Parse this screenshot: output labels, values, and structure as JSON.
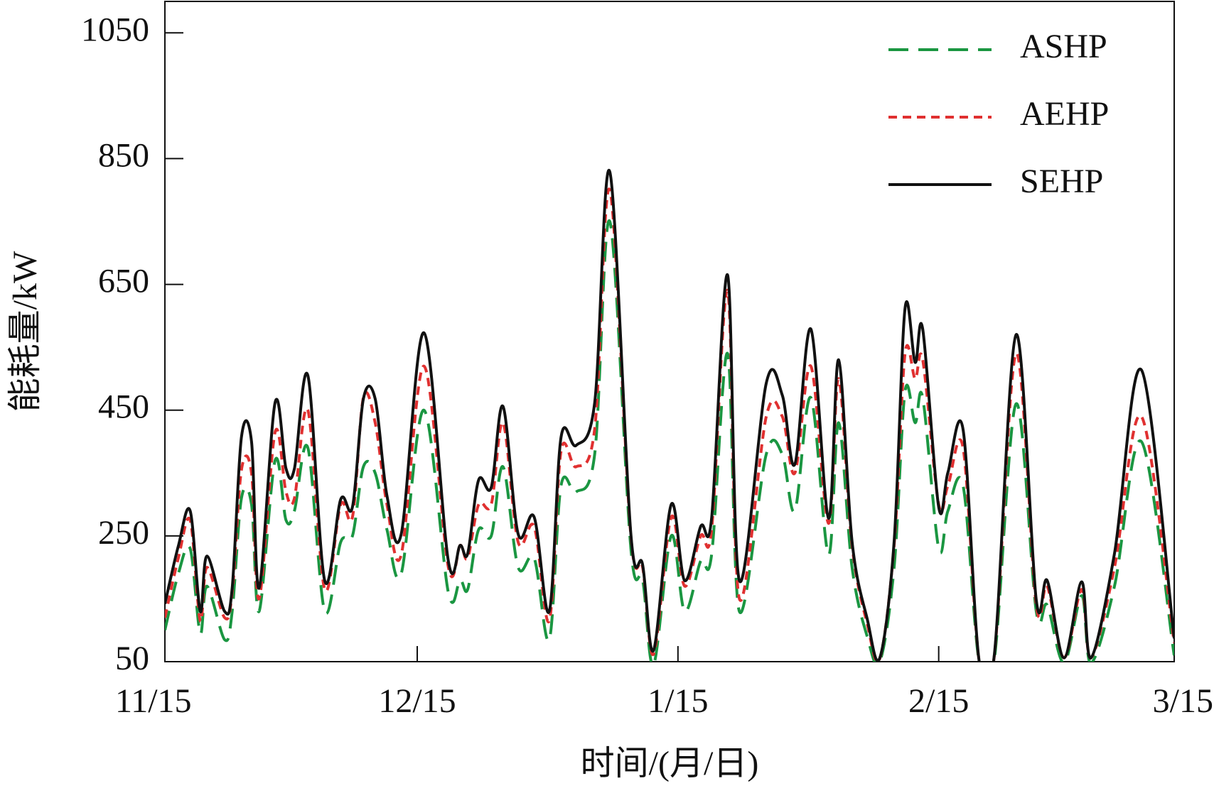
{
  "chart_data": {
    "type": "line",
    "x_label": "时间/(月/日)",
    "y_label": "能耗量/kW",
    "x": [
      0,
      1.6,
      3,
      4.2,
      5,
      7.1,
      8,
      9.1,
      10.3,
      11.2,
      13.1,
      14.4,
      15.4,
      17,
      19,
      20.9,
      22.3,
      23.6,
      25,
      26.4,
      28.1,
      30.8,
      33.7,
      35.1,
      36,
      37.3,
      38.8,
      40.2,
      42,
      43.9,
      45.7,
      47.1,
      48.9,
      51.1,
      52.9,
      55.4,
      56.8,
      58.1,
      60.2,
      61.8,
      63.7,
      65,
      66.9,
      68.3,
      71.5,
      73.4,
      74.9,
      76.8,
      78.9,
      80.1,
      81.7,
      83.5,
      85,
      86.7,
      88,
      89.2,
      90.1,
      92,
      93.1,
      94.9,
      96.8,
      98.6,
      101.2,
      103.6,
      104.9,
      106.9,
      109,
      110.1,
      112.9,
      116.1,
      120
    ],
    "xlim": [
      0,
      120
    ],
    "xticks": [
      {
        "value": 0,
        "label": "11/15"
      },
      {
        "value": 30,
        "label": "12/15"
      },
      {
        "value": 61,
        "label": "1/15"
      },
      {
        "value": 92,
        "label": "2/15"
      },
      {
        "value": 120,
        "label": "3/15"
      }
    ],
    "ylim": [
      50,
      1100
    ],
    "yticks": [
      50,
      250,
      450,
      650,
      850,
      1050
    ],
    "legend": "upper right",
    "series": [
      {
        "name": "ASHP",
        "color": "#1a9641",
        "dash": "dashed",
        "values": [
          100,
          190,
          230,
          95,
          170,
          85,
          130,
          310,
          300,
          130,
          370,
          275,
          290,
          390,
          130,
          240,
          250,
          360,
          350,
          260,
          190,
          450,
          160,
          180,
          165,
          260,
          250,
          360,
          200,
          215,
          85,
          330,
          320,
          380,
          750,
          230,
          180,
          45,
          250,
          130,
          210,
          220,
          540,
          130,
          380,
          380,
          290,
          470,
          220,
          430,
          200,
          90,
          50,
          200,
          480,
          430,
          470,
          230,
          290,
          330,
          50,
          52,
          460,
          130,
          140,
          48,
          155,
          48,
          170,
          400,
          60
        ]
      },
      {
        "name": "AEHP",
        "color": "#e03030",
        "dash": "dotted",
        "values": [
          120,
          215,
          275,
          115,
          200,
          120,
          160,
          355,
          350,
          150,
          415,
          320,
          310,
          450,
          165,
          300,
          280,
          470,
          430,
          300,
          220,
          520,
          200,
          235,
          215,
          300,
          300,
          430,
          240,
          265,
          115,
          385,
          360,
          420,
          800,
          250,
          200,
          62,
          280,
          170,
          250,
          260,
          640,
          150,
          440,
          440,
          350,
          520,
          270,
          500,
          235,
          110,
          55,
          235,
          540,
          500,
          530,
          300,
          330,
          390,
          52,
          58,
          540,
          140,
          170,
          56,
          165,
          56,
          200,
          440,
          80
        ]
      },
      {
        "name": "SEHP",
        "color": "#111111",
        "dash": "solid",
        "values": [
          142,
          234,
          290,
          130,
          218,
          130,
          167,
          407,
          400,
          167,
          462,
          357,
          357,
          505,
          179,
          308,
          296,
          468,
          468,
          314,
          253,
          573,
          210,
          235,
          222,
          339,
          327,
          456,
          253,
          280,
          130,
          407,
          394,
          462,
          829,
          253,
          204,
          68,
          300,
          179,
          265,
          278,
          665,
          179,
          493,
          474,
          364,
          579,
          278,
          530,
          241,
          118,
          56,
          241,
          612,
          526,
          579,
          296,
          351,
          419,
          52,
          59,
          570,
          148,
          179,
          56,
          177,
          56,
          222,
          514,
          87
        ]
      }
    ]
  }
}
